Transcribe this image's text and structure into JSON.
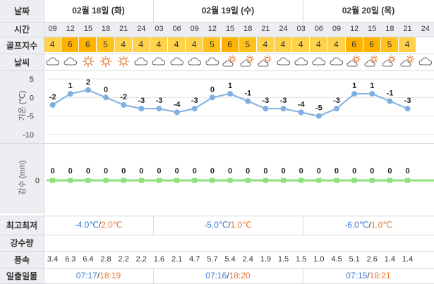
{
  "labels": {
    "date": "날짜",
    "time": "시간",
    "golf_index": "골프지수",
    "weather": "날씨",
    "temperature_axis": "기온 (℃)",
    "precip_axis": "강수 (mm)",
    "min_max": "최고최저",
    "precip_amount": "강수량",
    "wind_speed": "풍속",
    "sunrise_sunset": "일출일몰"
  },
  "days": [
    {
      "date": "02월 18일 (화)",
      "min": "-4.0℃",
      "max": "2.0℃",
      "sunrise": "07:17",
      "sunset": "18:19"
    },
    {
      "date": "02월 19일 (수)",
      "min": "-5.0℃",
      "max": "1.0℃",
      "sunrise": "07:16",
      "sunset": "18:20"
    },
    {
      "date": "02월 20일 (목)",
      "min": "-6.0℃",
      "max": "1.0℃",
      "sunrise": "07:15",
      "sunset": "18:21"
    }
  ],
  "separator": "/",
  "hours": [
    "09",
    "12",
    "15",
    "18",
    "21",
    "24",
    "03",
    "06",
    "09",
    "12",
    "15",
    "18",
    "21",
    "24",
    "03",
    "06",
    "09",
    "12",
    "15",
    "18",
    "21",
    "24"
  ],
  "golf_index": [
    "4",
    "6",
    "6",
    "5",
    "4",
    "4",
    "4",
    "4",
    "4",
    "5",
    "6",
    "5",
    "4",
    "4",
    "4",
    "4",
    "4",
    "6",
    "6",
    "5",
    "4"
  ],
  "golf_colors": {
    "4": "#ffd24a",
    "5": "#ffc21a",
    "6": "#ffb300"
  },
  "weather_icons": [
    "cloud-icon",
    "cloud-icon",
    "sun-icon",
    "sun-icon",
    "sun-icon",
    "cloud-icon",
    "cloud-icon",
    "cloud-icon",
    "cloud-icon",
    "cloud-icon",
    "sun-cloud-icon",
    "sun-cloud-icon",
    "sun-cloud-icon",
    "cloud-icon",
    "cloud-icon",
    "cloud-icon",
    "cloud-icon",
    "sun-cloud-icon",
    "sun-cloud-icon",
    "sun-cloud-icon",
    "sun-cloud-icon",
    "cloud-icon"
  ],
  "wind": [
    "3.4",
    "6.3",
    "6.4",
    "2.8",
    "2.2",
    "2.2",
    "1.6",
    "2.1",
    "4.7",
    "5.7",
    "5.4",
    "2.4",
    "1.9",
    "1.5",
    "1.5",
    "1.0",
    "4.5",
    "5.1",
    "2.6",
    "1.4",
    "1.4"
  ],
  "chart_data": [
    {
      "type": "line",
      "ylabel": "기온 (℃)",
      "yticks": [
        "5",
        "0",
        "-5",
        "-10"
      ],
      "ylim": [
        -10,
        5
      ],
      "x": [
        "09",
        "12",
        "15",
        "18",
        "21",
        "24",
        "03",
        "06",
        "09",
        "12",
        "15",
        "18",
        "21",
        "24",
        "03",
        "06",
        "09",
        "12",
        "15",
        "18",
        "21"
      ],
      "series": [
        {
          "values": [
            -2,
            1,
            2,
            0,
            -2,
            -3,
            -3,
            -4,
            -3,
            0,
            1,
            -1,
            -3,
            -3,
            -4,
            -5,
            -3,
            1,
            1,
            -1,
            -3
          ]
        }
      ],
      "data_labels": [
        "-2",
        "1",
        "2",
        "0",
        "-2",
        "-3",
        "-3",
        "-4",
        "-3",
        "0",
        "1",
        "-1",
        "-3",
        "-3",
        "-4",
        "-5",
        "-3",
        "1",
        "1",
        "-1",
        "-3"
      ],
      "color": "#7fb0e0",
      "grid": true
    },
    {
      "type": "line",
      "ylabel": "강수 (mm)",
      "yticks": [
        "0"
      ],
      "x": [
        "09",
        "12",
        "15",
        "18",
        "21",
        "24",
        "03",
        "06",
        "09",
        "12",
        "15",
        "18",
        "21",
        "24",
        "03",
        "06",
        "09",
        "12",
        "15",
        "18",
        "21"
      ],
      "series": [
        {
          "values": [
            0,
            0,
            0,
            0,
            0,
            0,
            0,
            0,
            0,
            0,
            0,
            0,
            0,
            0,
            0,
            0,
            0,
            0,
            0,
            0,
            0
          ]
        }
      ],
      "data_labels": [
        "0",
        "0",
        "0",
        "0",
        "0",
        "0",
        "0",
        "0",
        "0",
        "0",
        "0",
        "0",
        "0",
        "0",
        "0",
        "0",
        "0",
        "0",
        "0",
        "0",
        "0"
      ],
      "color": "#8ee07a",
      "grid": true
    }
  ]
}
